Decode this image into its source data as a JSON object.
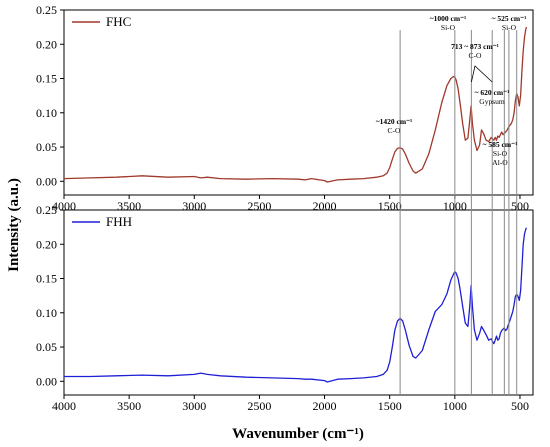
{
  "chart_data": {
    "type": "line",
    "xlabel": "Wavenumber (cm⁻¹)",
    "ylabel": "Intensity (a.u.)",
    "xlim": [
      4000,
      400
    ],
    "x_ticks": [
      "4000",
      "3500",
      "3000",
      "2500",
      "2000",
      "1500",
      "1000",
      "500"
    ],
    "x_tick_values": [
      4000,
      3500,
      3000,
      2500,
      2000,
      1500,
      1000,
      500
    ],
    "panels": [
      {
        "legend": "FHC",
        "color": "#A0392B",
        "ylim": [
          -0.02,
          0.25
        ],
        "y_ticks": [
          "0.00",
          "0.05",
          "0.10",
          "0.15",
          "0.20",
          "0.25"
        ],
        "y_tick_values": [
          0,
          0.05,
          0.1,
          0.15,
          0.2,
          0.25
        ],
        "series": {
          "x": [
            4000,
            3800,
            3600,
            3400,
            3200,
            3000,
            2950,
            2900,
            2800,
            2600,
            2400,
            2200,
            2150,
            2100,
            2000,
            1980,
            1900,
            1800,
            1700,
            1600,
            1550,
            1520,
            1500,
            1480,
            1460,
            1440,
            1420,
            1400,
            1380,
            1350,
            1320,
            1300,
            1250,
            1200,
            1150,
            1100,
            1060,
            1030,
            1010,
            1000,
            990,
            975,
            960,
            940,
            920,
            900,
            885,
            875,
            865,
            850,
            830,
            810,
            795,
            780,
            760,
            740,
            720,
            710,
            700,
            690,
            680,
            670,
            660,
            650,
            640,
            630,
            620,
            610,
            600,
            590,
            585,
            575,
            565,
            555,
            545,
            535,
            525,
            515,
            505,
            495,
            485,
            475,
            465,
            455,
            450
          ],
          "y": [
            0.004,
            0.005,
            0.006,
            0.008,
            0.006,
            0.007,
            0.005,
            0.006,
            0.004,
            0.003,
            0.004,
            0.003,
            0.002,
            0.004,
            0.001,
            -0.001,
            0.002,
            0.003,
            0.004,
            0.006,
            0.008,
            0.012,
            0.02,
            0.032,
            0.043,
            0.048,
            0.049,
            0.047,
            0.04,
            0.026,
            0.015,
            0.012,
            0.018,
            0.04,
            0.075,
            0.115,
            0.14,
            0.15,
            0.153,
            0.152,
            0.148,
            0.135,
            0.115,
            0.085,
            0.06,
            0.063,
            0.09,
            0.11,
            0.085,
            0.06,
            0.045,
            0.053,
            0.075,
            0.07,
            0.06,
            0.058,
            0.064,
            0.062,
            0.06,
            0.064,
            0.06,
            0.066,
            0.064,
            0.068,
            0.072,
            0.068,
            0.07,
            0.072,
            0.074,
            0.078,
            0.08,
            0.082,
            0.085,
            0.09,
            0.1,
            0.118,
            0.128,
            0.123,
            0.11,
            0.125,
            0.16,
            0.19,
            0.21,
            0.222,
            0.225
          ]
        }
      },
      {
        "legend": "FHH",
        "color": "#1F1FD6",
        "ylim": [
          -0.02,
          0.25
        ],
        "y_ticks": [
          "0.00",
          "0.05",
          "0.10",
          "0.15",
          "0.20",
          "0.25"
        ],
        "y_tick_values": [
          0,
          0.05,
          0.1,
          0.15,
          0.2,
          0.25
        ],
        "series": {
          "x": [
            4000,
            3800,
            3600,
            3400,
            3200,
            3000,
            2950,
            2900,
            2800,
            2600,
            2400,
            2200,
            2150,
            2100,
            2000,
            1980,
            1900,
            1800,
            1700,
            1600,
            1550,
            1520,
            1500,
            1480,
            1460,
            1440,
            1420,
            1400,
            1380,
            1350,
            1320,
            1300,
            1250,
            1200,
            1150,
            1100,
            1060,
            1030,
            1010,
            1000,
            990,
            975,
            960,
            940,
            920,
            900,
            885,
            875,
            865,
            850,
            830,
            810,
            795,
            780,
            760,
            740,
            720,
            710,
            700,
            690,
            680,
            670,
            660,
            650,
            640,
            630,
            620,
            610,
            600,
            590,
            585,
            575,
            565,
            555,
            545,
            535,
            525,
            515,
            505,
            495,
            485,
            475,
            465,
            455,
            450
          ],
          "y": [
            0.007,
            0.007,
            0.008,
            0.009,
            0.008,
            0.01,
            0.012,
            0.01,
            0.008,
            0.006,
            0.005,
            0.004,
            0.003,
            0.003,
            0.001,
            -0.001,
            0.003,
            0.004,
            0.005,
            0.007,
            0.01,
            0.016,
            0.028,
            0.05,
            0.075,
            0.088,
            0.092,
            0.088,
            0.075,
            0.052,
            0.036,
            0.034,
            0.045,
            0.075,
            0.102,
            0.112,
            0.128,
            0.148,
            0.156,
            0.16,
            0.158,
            0.15,
            0.135,
            0.11,
            0.085,
            0.08,
            0.11,
            0.14,
            0.11,
            0.075,
            0.06,
            0.07,
            0.08,
            0.075,
            0.068,
            0.06,
            0.062,
            0.058,
            0.055,
            0.06,
            0.066,
            0.06,
            0.062,
            0.07,
            0.074,
            0.076,
            0.078,
            0.074,
            0.076,
            0.082,
            0.085,
            0.09,
            0.096,
            0.102,
            0.112,
            0.124,
            0.127,
            0.124,
            0.118,
            0.132,
            0.165,
            0.2,
            0.215,
            0.222,
            0.224
          ]
        }
      }
    ],
    "reference_lines": [
      1420,
      1000,
      873,
      713,
      620,
      585,
      525
    ],
    "annotations": [
      {
        "line1": "~1420 cm⁻¹",
        "line2": "C-O",
        "x": 1420
      },
      {
        "line1": "~1000 cm⁻¹",
        "line2": "Si-O",
        "x": 1000
      },
      {
        "line1": "713 ~ 873 cm⁻¹",
        "line2": "C-O",
        "x": 793
      },
      {
        "line1": "~ 620 cm⁻¹",
        "line2": "Gypsum",
        "x": 620
      },
      {
        "line1": "~ 585 cm⁻¹",
        "line2": "Si-O",
        "line3": "Al-O",
        "x": 585
      },
      {
        "line1": "~ 525 cm⁻¹",
        "line2": "Si-O",
        "x": 525
      }
    ]
  }
}
